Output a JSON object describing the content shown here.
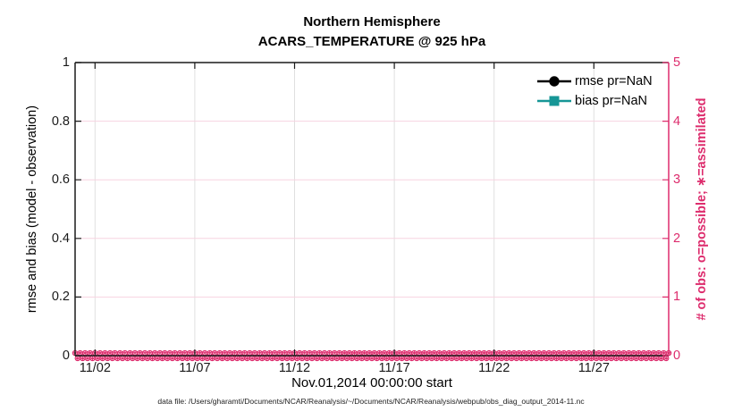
{
  "figure": {
    "title_line1": "Northern Hemisphere",
    "title_line2": "ACARS_TEMPERATURE @ 925 hPa",
    "xlabel": "Nov.01,2014 00:00:00 start",
    "ylabel_left": "rmse and bias (model - observation)",
    "ylabel_right": "# of obs: o=possible; ∗=assimilated",
    "caption": "data file: /Users/gharamti/Documents/NCAR/Reanalysis/~/Documents/NCAR/Reanalysis/webpub/obs_diag_output_2014-11.nc"
  },
  "legend": {
    "items": [
      {
        "label": "rmse pr=NaN",
        "color": "#000000",
        "marker": "filled-circle"
      },
      {
        "label": "bias pr=NaN",
        "color": "#169696",
        "marker": "filled-square"
      }
    ]
  },
  "colors": {
    "axis_black": "#1a1a1a",
    "obs_pink": "#dd2c6d",
    "grid_pink": "#f7d3e0",
    "grid_gray": "#e0e0e0",
    "bias_teal": "#169696",
    "background": "#ffffff"
  },
  "chart_data": {
    "type": "line",
    "title": "Northern Hemisphere",
    "subtitle": "ACARS_TEMPERATURE @ 925 hPa",
    "xlabel": "Nov.01,2014 00:00:00 start",
    "x_tick_labels": [
      "11/02",
      "11/07",
      "11/12",
      "11/17",
      "11/22",
      "11/27"
    ],
    "x_tick_days": [
      1,
      6,
      11,
      16,
      21,
      26
    ],
    "x_domain_days": [
      0,
      29.75
    ],
    "left_axis": {
      "label": "rmse and bias (model - observation)",
      "lim": [
        0,
        1
      ],
      "ticks": [
        0,
        0.2,
        0.4,
        0.6,
        0.8,
        1
      ],
      "tick_labels": [
        "0",
        "0.2",
        "0.4",
        "0.6",
        "0.8",
        "1"
      ],
      "color": "#1a1a1a"
    },
    "right_axis": {
      "label": "# of obs: o=possible; ∗=assimilated",
      "lim": [
        0,
        5
      ],
      "ticks": [
        0,
        1,
        2,
        3,
        4,
        5
      ],
      "tick_labels": [
        "0",
        "1",
        "2",
        "3",
        "4",
        "5"
      ],
      "color": "#dd2c6d"
    },
    "grid": true,
    "legend_position": "upper-right-inside",
    "series": [
      {
        "name": "rmse pr=NaN",
        "axis": "left",
        "color": "#000000",
        "marker": "filled-circle",
        "values": null,
        "note": "all values NaN - no curve drawn"
      },
      {
        "name": "bias pr=NaN",
        "axis": "left",
        "color": "#169696",
        "marker": "filled-square",
        "values": null,
        "note": "all values NaN - no curve drawn"
      },
      {
        "name": "# of obs possible (o)",
        "axis": "right",
        "color": "#dd2c6d",
        "marker": "open-circle",
        "constant_value": 0,
        "x_coverage_days": [
          0,
          29.75
        ]
      },
      {
        "name": "# of obs assimilated (∗)",
        "axis": "right",
        "color": "#dd2c6d",
        "marker": "asterisk",
        "constant_value": 0,
        "x_coverage_days": [
          0,
          29.75
        ]
      }
    ]
  }
}
